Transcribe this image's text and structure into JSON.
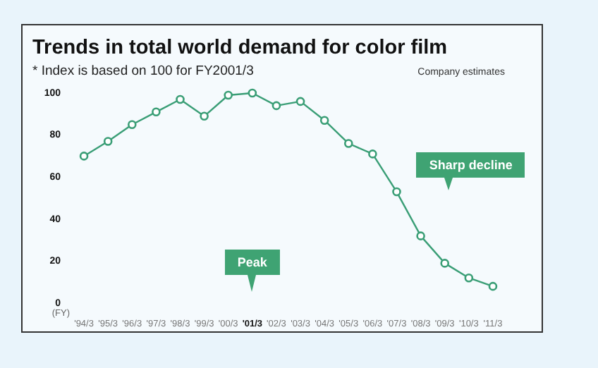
{
  "chart_data": {
    "type": "line",
    "title": "Trends in total world demand for color film",
    "subtitle": "* Index is based on 100 for FY2001/3",
    "xlabel": "(FY)",
    "categories": [
      "'94/3",
      "'95/3",
      "'96/3",
      "'97/3",
      "'98/3",
      "'99/3",
      "'00/3",
      "'01/3",
      "'02/3",
      "'03/3",
      "'04/3",
      "'05/3",
      "'06/3",
      "'07/3",
      "'08/3",
      "'09/3",
      "'10/3",
      "'11/3"
    ],
    "series": [
      {
        "color": "#3a9e76",
        "values": [
          70,
          77,
          85,
          91,
          97,
          89,
          99,
          100,
          94,
          96,
          87,
          76,
          71,
          53,
          32,
          19,
          12,
          8
        ]
      }
    ],
    "ylim": [
      0,
      100
    ],
    "yticks": [
      0,
      20,
      40,
      60,
      80,
      100
    ],
    "marker": "circle",
    "line_style": "solid",
    "legend": false,
    "annotations": [
      "Company estimates",
      {
        "text": "Peak",
        "x": "'01/3"
      },
      "Sharp decline"
    ]
  }
}
